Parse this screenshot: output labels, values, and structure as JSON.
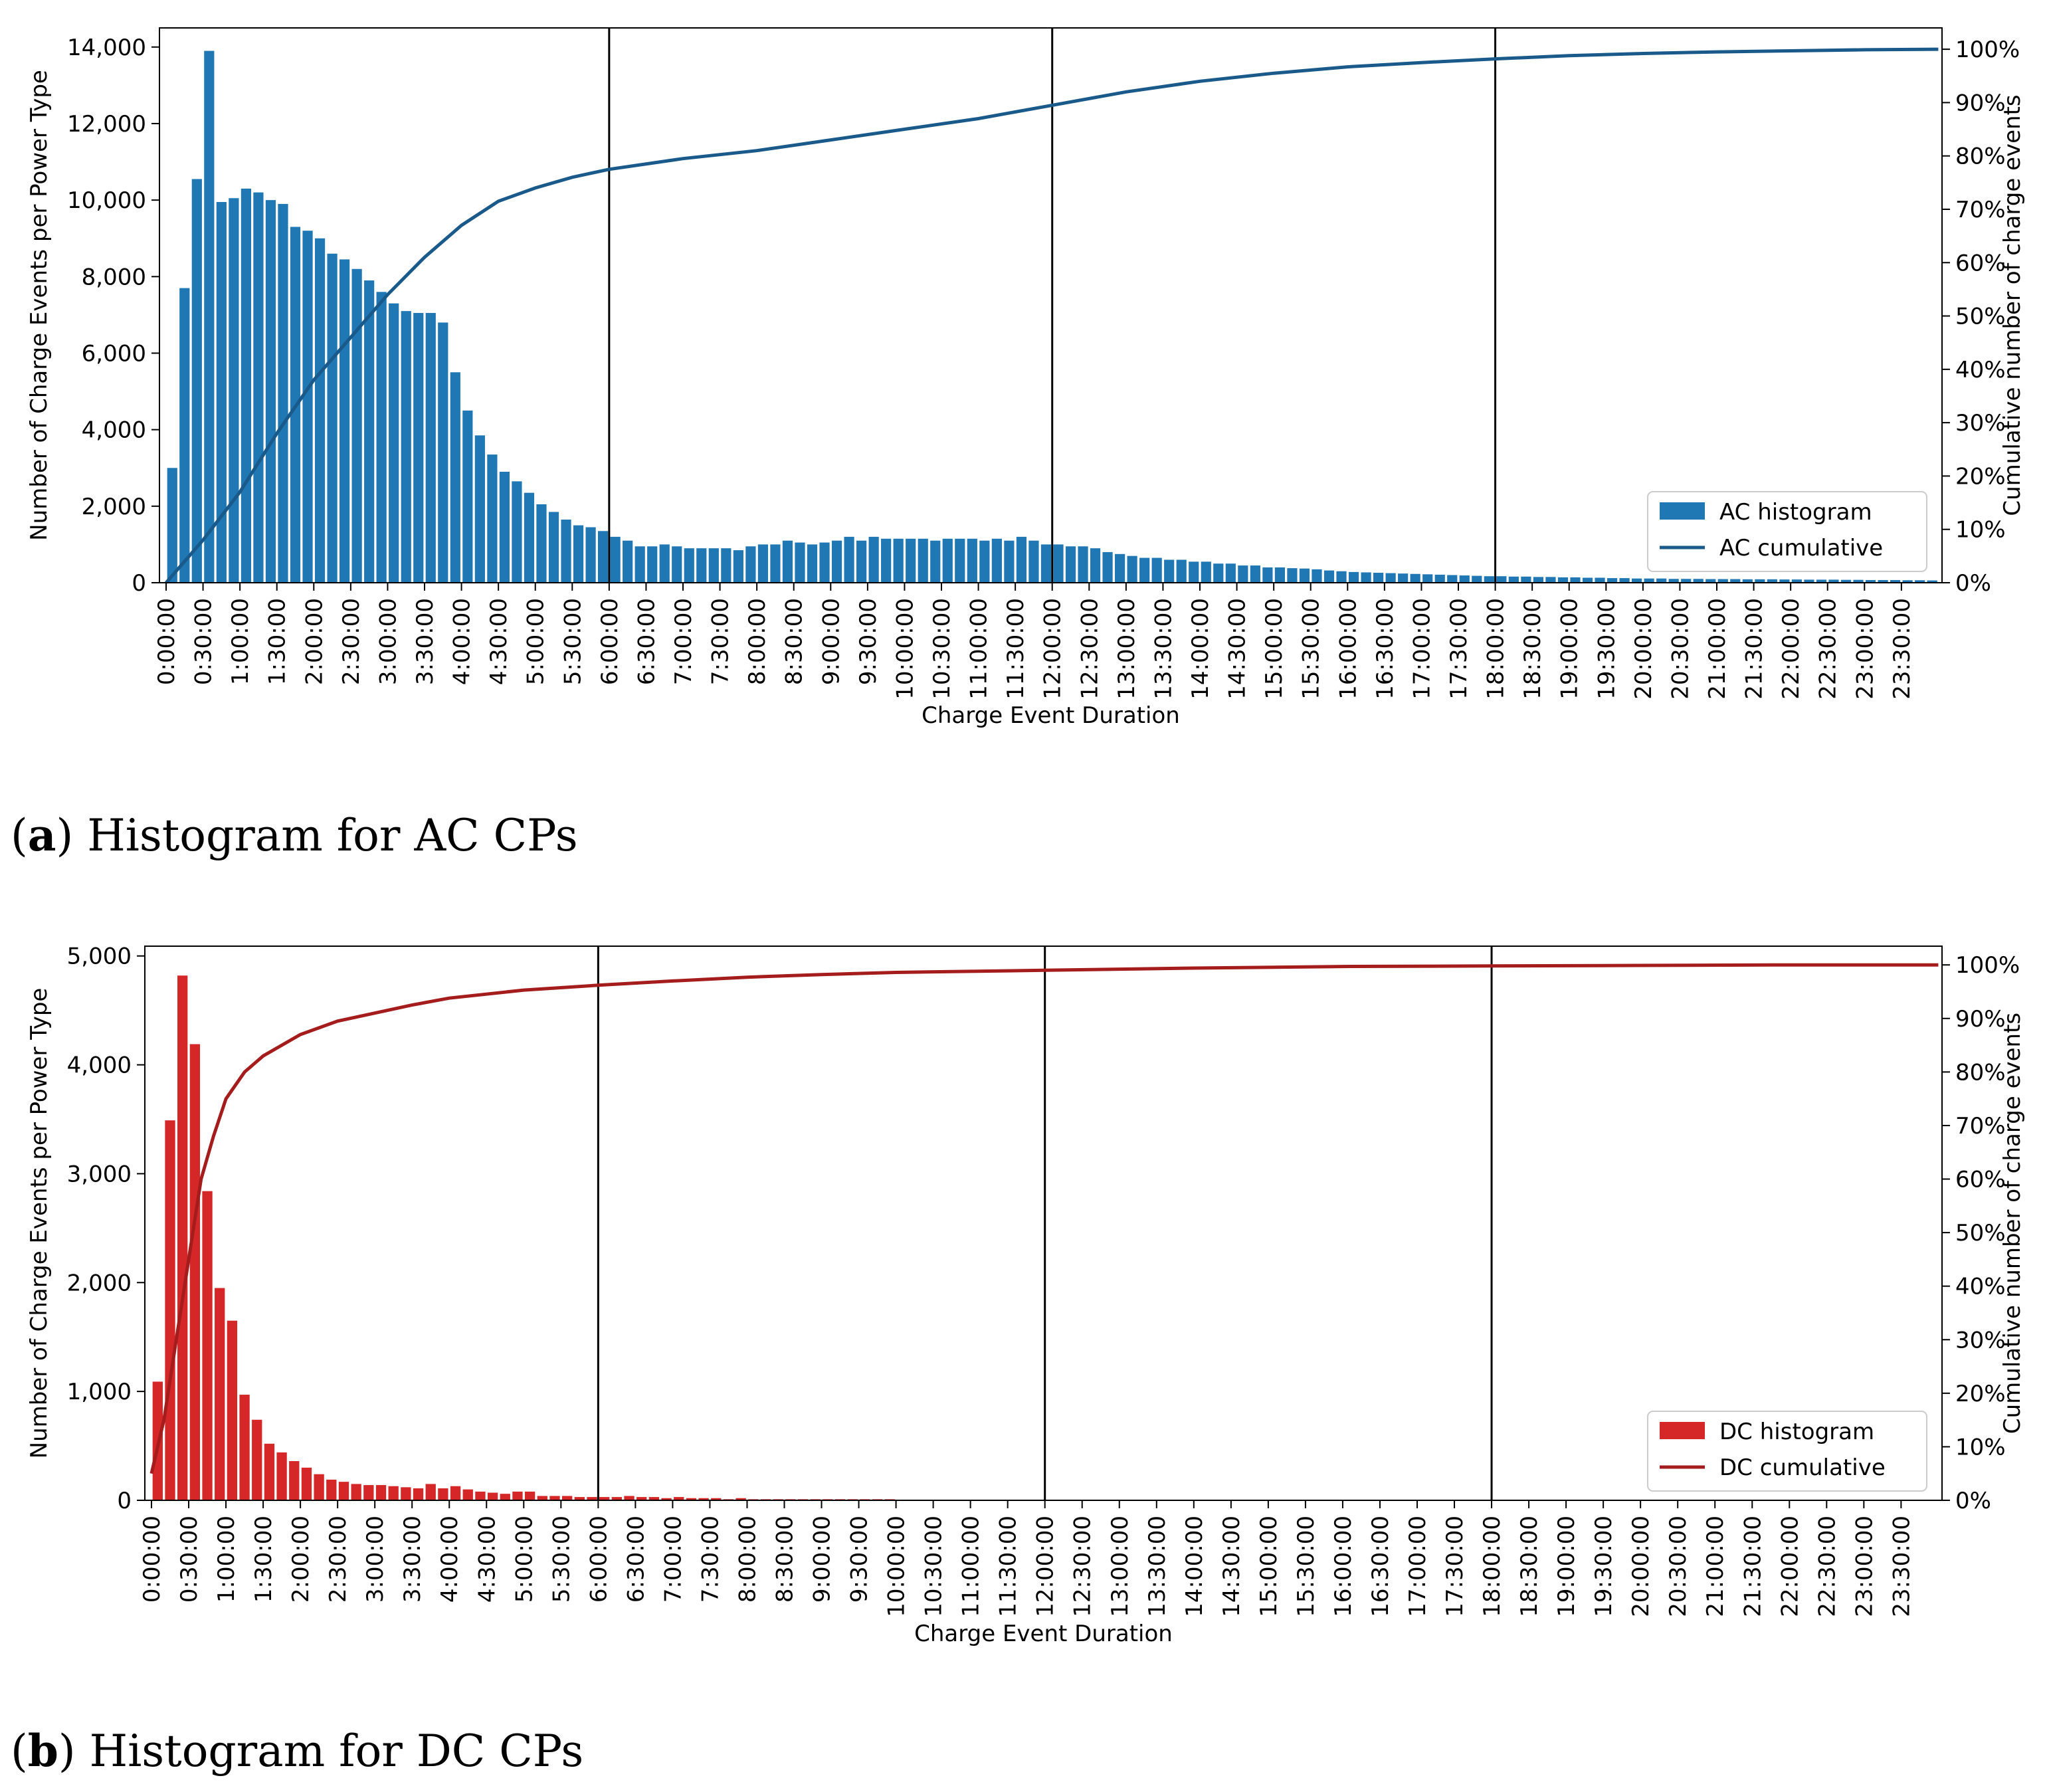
{
  "chart_data": [
    {
      "id": "ac",
      "type": "bar",
      "caption_letter": "a",
      "caption_text": "Histogram for AC CPs",
      "xlabel": "Charge Event Duration",
      "ylabel": "Number of Charge Events per Power Type",
      "y2label": "Cumulative number of charge events",
      "ylim": [
        0,
        14500
      ],
      "y2lim": [
        0,
        1.04
      ],
      "yticks": [
        0,
        2000,
        4000,
        6000,
        8000,
        10000,
        12000,
        14000
      ],
      "ytick_labels": [
        "0",
        "2,000",
        "4,000",
        "6,000",
        "8,000",
        "10,000",
        "12,000",
        "14,000"
      ],
      "y2ticks": [
        0,
        0.1,
        0.2,
        0.3,
        0.4,
        0.5,
        0.6,
        0.7,
        0.8,
        0.9,
        1.0
      ],
      "y2tick_labels": [
        "0%",
        "10%",
        "20%",
        "30%",
        "40%",
        "50%",
        "60%",
        "70%",
        "80%",
        "90%",
        "100%"
      ],
      "xtick_labels": [
        "0:00:00",
        "0:30:00",
        "1:00:00",
        "1:30:00",
        "2:00:00",
        "2:30:00",
        "3:00:00",
        "3:30:00",
        "4:00:00",
        "4:30:00",
        "5:00:00",
        "5:30:00",
        "6:00:00",
        "6:30:00",
        "7:00:00",
        "7:30:00",
        "8:00:00",
        "8:30:00",
        "9:00:00",
        "9:30:00",
        "10:00:00",
        "10:30:00",
        "11:00:00",
        "11:30:00",
        "12:00:00",
        "12:30:00",
        "13:00:00",
        "13:30:00",
        "14:00:00",
        "14:30:00",
        "15:00:00",
        "15:30:00",
        "16:00:00",
        "16:30:00",
        "17:00:00",
        "17:30:00",
        "18:00:00",
        "18:30:00",
        "19:00:00",
        "19:30:00",
        "20:00:00",
        "20:30:00",
        "21:00:00",
        "21:30:00",
        "22:00:00",
        "22:30:00",
        "23:00:00",
        "23:30:00"
      ],
      "bin_minutes": 10,
      "vlines_hours": [
        6,
        12,
        18
      ],
      "bar_color": "#1f77b4",
      "line_color": "#1a5a8a",
      "histogram_values": [
        3000,
        7700,
        10550,
        13900,
        9950,
        10050,
        10300,
        10200,
        10000,
        9900,
        9300,
        9200,
        9000,
        8600,
        8450,
        8200,
        7900,
        7600,
        7300,
        7100,
        7050,
        7050,
        6800,
        5500,
        4500,
        3850,
        3350,
        2900,
        2650,
        2350,
        2050,
        1850,
        1650,
        1500,
        1450,
        1350,
        1200,
        1100,
        950,
        950,
        1000,
        950,
        900,
        900,
        900,
        900,
        850,
        950,
        1000,
        1000,
        1100,
        1050,
        1000,
        1050,
        1100,
        1200,
        1100,
        1200,
        1150,
        1150,
        1150,
        1150,
        1100,
        1150,
        1150,
        1150,
        1100,
        1150,
        1100,
        1200,
        1100,
        1000,
        1000,
        950,
        950,
        900,
        800,
        750,
        700,
        650,
        650,
        600,
        600,
        550,
        550,
        500,
        500,
        450,
        450,
        400,
        400,
        380,
        370,
        350,
        320,
        300,
        280,
        270,
        260,
        250,
        240,
        230,
        220,
        210,
        200,
        190,
        180,
        170,
        170,
        160,
        160,
        150,
        150,
        140,
        140,
        130,
        130,
        120,
        120,
        110,
        110,
        110,
        100,
        100,
        100,
        95,
        95,
        95,
        90,
        90,
        90,
        85,
        85,
        80,
        80,
        80,
        75,
        75,
        70,
        70,
        70,
        65,
        65,
        60
      ],
      "cumulative": [
        [
          0,
          0
        ],
        [
          0.5,
          0.08
        ],
        [
          1,
          0.17
        ],
        [
          1.5,
          0.28
        ],
        [
          2,
          0.38
        ],
        [
          2.5,
          0.46
        ],
        [
          3,
          0.54
        ],
        [
          3.5,
          0.61
        ],
        [
          4,
          0.67
        ],
        [
          4.5,
          0.715
        ],
        [
          5,
          0.74
        ],
        [
          5.5,
          0.76
        ],
        [
          6,
          0.775
        ],
        [
          7,
          0.795
        ],
        [
          8,
          0.81
        ],
        [
          9,
          0.83
        ],
        [
          10,
          0.85
        ],
        [
          11,
          0.87
        ],
        [
          12,
          0.895
        ],
        [
          13,
          0.92
        ],
        [
          14,
          0.94
        ],
        [
          15,
          0.955
        ],
        [
          16,
          0.967
        ],
        [
          17,
          0.975
        ],
        [
          18,
          0.982
        ],
        [
          19,
          0.988
        ],
        [
          20,
          0.992
        ],
        [
          21,
          0.995
        ],
        [
          22,
          0.997
        ],
        [
          23,
          0.999
        ],
        [
          24,
          1.0
        ]
      ],
      "legend": [
        "AC histogram",
        "AC cumulative"
      ]
    },
    {
      "id": "dc",
      "type": "bar",
      "caption_letter": "b",
      "caption_text": "Histogram for DC CPs",
      "xlabel": "Charge Event Duration",
      "ylabel": "Number of Charge Events per Power Type",
      "y2label": "Cumulative number of charge events",
      "ylim": [
        0,
        5090
      ],
      "y2lim": [
        0,
        1.035
      ],
      "yticks": [
        0,
        1000,
        2000,
        3000,
        4000,
        5000
      ],
      "ytick_labels": [
        "0",
        "1,000",
        "2,000",
        "3,000",
        "4,000",
        "5,000"
      ],
      "y2ticks": [
        0,
        0.1,
        0.2,
        0.3,
        0.4,
        0.5,
        0.6,
        0.7,
        0.8,
        0.9,
        1.0
      ],
      "y2tick_labels": [
        "0%",
        "10%",
        "20%",
        "30%",
        "40%",
        "50%",
        "60%",
        "70%",
        "80%",
        "90%",
        "100%"
      ],
      "xtick_labels": [
        "0:00:00",
        "0:30:00",
        "1:00:00",
        "1:30:00",
        "2:00:00",
        "2:30:00",
        "3:00:00",
        "3:30:00",
        "4:00:00",
        "4:30:00",
        "5:00:00",
        "5:30:00",
        "6:00:00",
        "6:30:00",
        "7:00:00",
        "7:30:00",
        "8:00:00",
        "8:30:00",
        "9:00:00",
        "9:30:00",
        "10:00:00",
        "10:30:00",
        "11:00:00",
        "11:30:00",
        "12:00:00",
        "12:30:00",
        "13:00:00",
        "13:30:00",
        "14:00:00",
        "14:30:00",
        "15:00:00",
        "15:30:00",
        "16:00:00",
        "16:30:00",
        "17:00:00",
        "17:30:00",
        "18:00:00",
        "18:30:00",
        "19:00:00",
        "19:30:00",
        "20:00:00",
        "20:30:00",
        "21:00:00",
        "21:30:00",
        "22:00:00",
        "22:30:00",
        "23:00:00",
        "23:30:00"
      ],
      "bin_minutes": 10,
      "vlines_hours": [
        6,
        12,
        18
      ],
      "bar_color": "#d62728",
      "line_color": "#a51c1c",
      "histogram_values": [
        1090,
        3490,
        4820,
        4190,
        2840,
        1950,
        1650,
        970,
        740,
        520,
        440,
        360,
        300,
        240,
        190,
        170,
        150,
        140,
        140,
        130,
        120,
        110,
        150,
        110,
        130,
        100,
        80,
        70,
        60,
        80,
        80,
        40,
        40,
        40,
        30,
        30,
        30,
        30,
        40,
        30,
        30,
        20,
        30,
        20,
        20,
        20,
        10,
        20,
        10,
        10,
        10,
        10,
        10,
        10,
        10,
        10,
        10,
        10,
        10,
        10,
        5,
        5,
        5,
        5,
        5,
        5,
        5,
        5,
        5,
        5,
        5,
        5,
        5,
        5,
        5,
        5,
        5,
        5,
        5,
        5,
        5,
        5,
        5,
        5,
        5,
        5,
        5,
        5,
        5,
        5,
        5,
        5,
        5,
        5,
        5,
        5,
        5,
        5,
        5,
        5,
        5,
        5,
        5,
        5,
        5,
        5,
        5,
        5,
        5,
        5,
        5,
        5,
        5,
        5,
        5,
        5,
        5,
        5,
        5,
        5,
        5,
        5,
        5,
        5,
        5,
        5,
        5,
        5,
        5,
        5,
        5,
        5,
        5,
        5,
        5,
        5,
        5,
        5,
        5,
        5,
        5,
        5,
        5,
        5
      ],
      "cumulative": [
        [
          0,
          0.05
        ],
        [
          0.167,
          0.15
        ],
        [
          0.333,
          0.3
        ],
        [
          0.5,
          0.45
        ],
        [
          0.667,
          0.6
        ],
        [
          0.833,
          0.68
        ],
        [
          1,
          0.75
        ],
        [
          1.25,
          0.8
        ],
        [
          1.5,
          0.83
        ],
        [
          2,
          0.87
        ],
        [
          2.5,
          0.895
        ],
        [
          3,
          0.91
        ],
        [
          3.5,
          0.925
        ],
        [
          4,
          0.938
        ],
        [
          5,
          0.953
        ],
        [
          6,
          0.962
        ],
        [
          7,
          0.97
        ],
        [
          8,
          0.977
        ],
        [
          9,
          0.982
        ],
        [
          10,
          0.986
        ],
        [
          12,
          0.99
        ],
        [
          14,
          0.994
        ],
        [
          16,
          0.997
        ],
        [
          18,
          0.998
        ],
        [
          20,
          0.999
        ],
        [
          22,
          1.0
        ],
        [
          24,
          1.0
        ]
      ],
      "legend": [
        "DC histogram",
        "DC cumulative"
      ]
    }
  ]
}
